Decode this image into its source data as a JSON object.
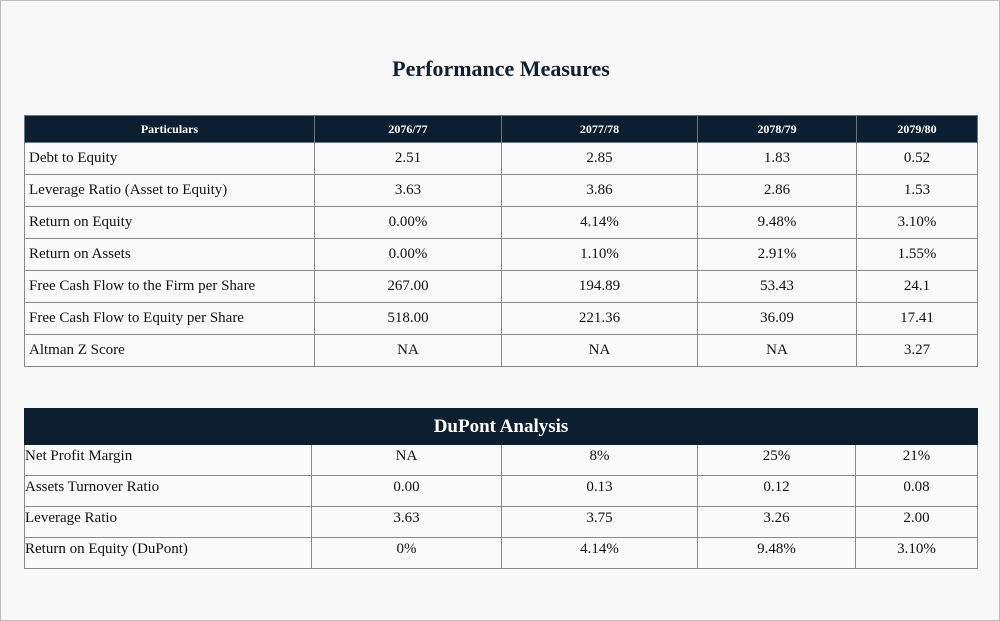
{
  "title": "Performance Measures",
  "performance": {
    "headers": [
      "Particulars",
      "2076/77",
      "2077/78",
      "2078/79",
      "2079/80"
    ],
    "rows": [
      [
        "Debt to Equity",
        "2.51",
        "2.85",
        "1.83",
        "0.52"
      ],
      [
        "Leverage Ratio (Asset to Equity)",
        "3.63",
        "3.86",
        "2.86",
        "1.53"
      ],
      [
        "Return on Equity",
        "0.00%",
        "4.14%",
        "9.48%",
        "3.10%"
      ],
      [
        "Return on Assets",
        "0.00%",
        "1.10%",
        "2.91%",
        "1.55%"
      ],
      [
        "Free Cash Flow to the Firm per Share",
        "267.00",
        "194.89",
        "53.43",
        "24.1"
      ],
      [
        "Free Cash Flow to Equity per Share",
        "518.00",
        "221.36",
        "36.09",
        "17.41"
      ],
      [
        "Altman Z Score",
        "NA",
        "NA",
        "NA",
        "3.27"
      ]
    ]
  },
  "dupont": {
    "title": "DuPont Analysis",
    "rows": [
      [
        "Net Profit Margin",
        "NA",
        "8%",
        "25%",
        "21%"
      ],
      [
        "Assets Turnover Ratio",
        "0.00",
        "0.13",
        "0.12",
        "0.08"
      ],
      [
        "Leverage Ratio",
        "3.63",
        "3.75",
        "3.26",
        "2.00"
      ],
      [
        "Return on Equity (DuPont)",
        "0%",
        "4.14%",
        "9.48%",
        "3.10%"
      ]
    ]
  },
  "colors": {
    "header_bg": "#0c1f31",
    "title_color": "#0e2033"
  }
}
